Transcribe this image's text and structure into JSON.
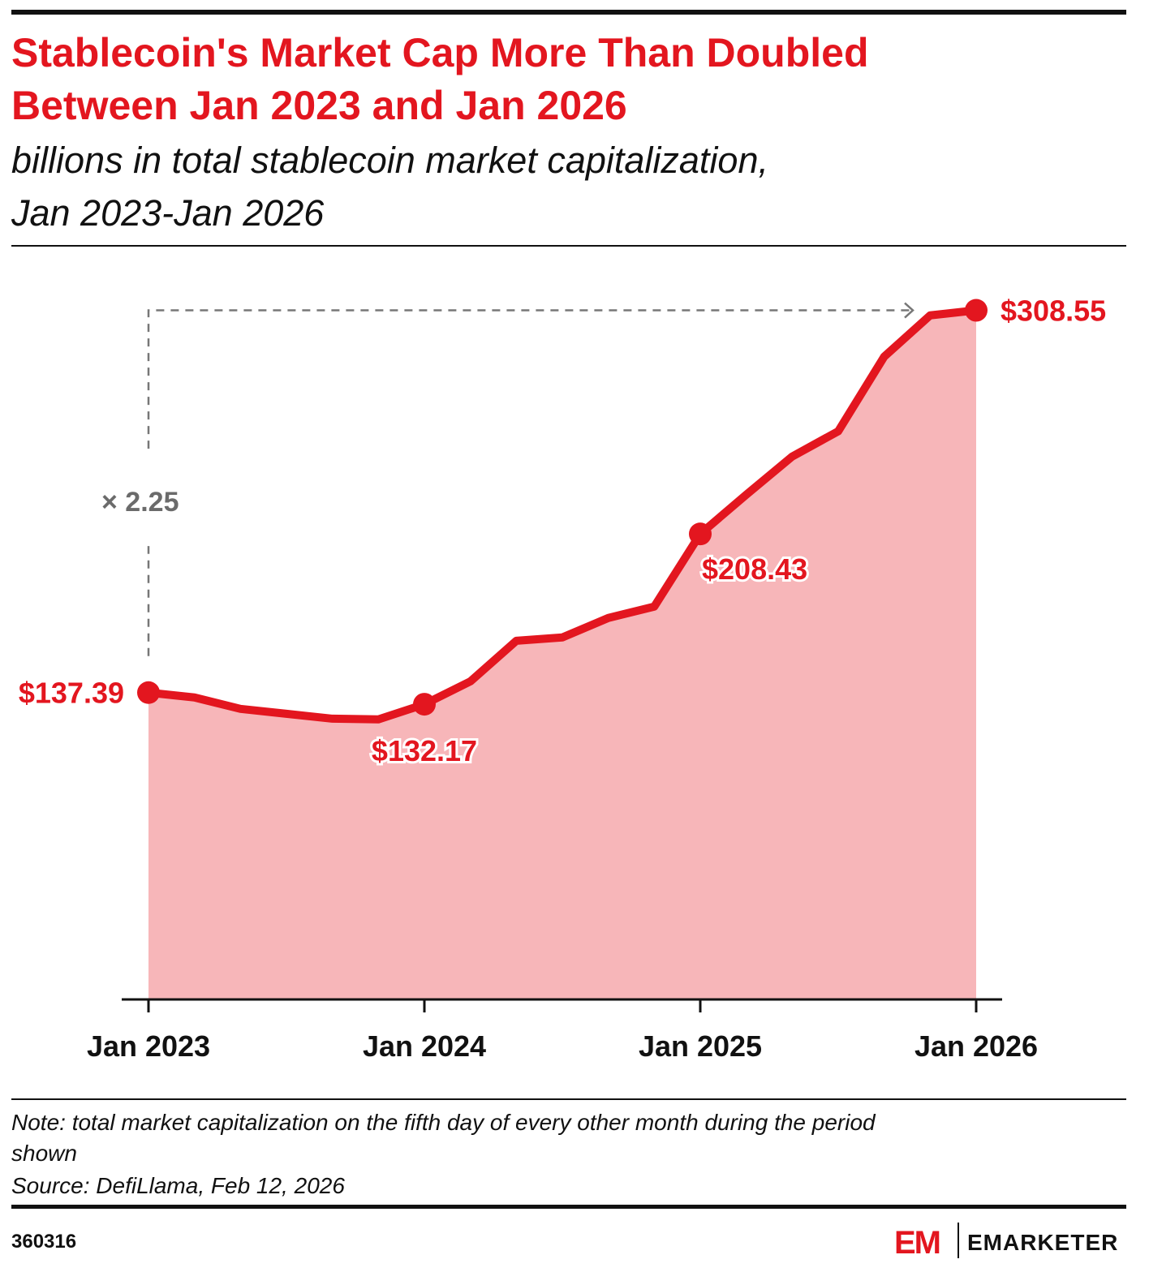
{
  "chart_data": {
    "type": "area",
    "title": [
      "Stablecoin's Market Cap More Than Doubled",
      "Between Jan 2023 and Jan 2026"
    ],
    "subtitle": [
      "billions in total stablecoin market capitalization,",
      "Jan 2023-Jan 2026"
    ],
    "categories": [
      "Jan 2023",
      null,
      null,
      null,
      null,
      null,
      "Jan 2024",
      null,
      null,
      null,
      null,
      null,
      "Jan 2025",
      null,
      null,
      null,
      null,
      null,
      "Jan 2026"
    ],
    "values": [
      137.39,
      135.2,
      130.1,
      127.9,
      125.7,
      125.4,
      132.17,
      142.4,
      160.6,
      162.1,
      170.8,
      175.9,
      208.43,
      226.0,
      243.1,
      254.4,
      287.8,
      306.3,
      308.55
    ],
    "value_labels": [
      "$137.39",
      null,
      null,
      null,
      null,
      null,
      "$132.17",
      null,
      null,
      null,
      null,
      null,
      "$208.43",
      null,
      null,
      null,
      null,
      null,
      "$308.55"
    ],
    "annotation": "× 2.25",
    "color": "#e3161f",
    "fill_color": "#f7b6b9",
    "ylim": [
      0,
      320
    ],
    "note": [
      "Note: total market capitalization on the fifth day of every other month during the period",
      "shown"
    ],
    "source": "Source: DefiLlama, Feb 12, 2026",
    "chart_id": "360316",
    "logo_mark": "EM",
    "brand": "EMARKETER"
  }
}
